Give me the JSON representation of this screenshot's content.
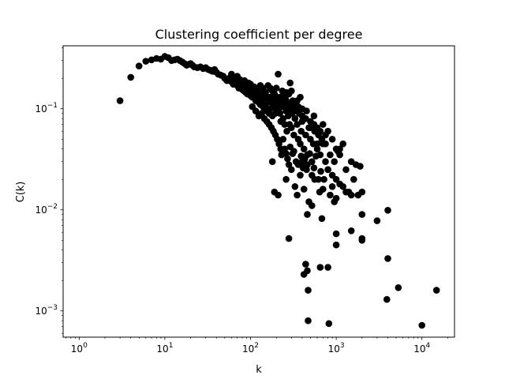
{
  "chart_data": {
    "type": "scatter",
    "title": "Clustering coefficient per degree",
    "xlabel": "k",
    "ylabel": "C(k)",
    "x_scale": "log",
    "y_scale": "log",
    "xlim": [
      0.65,
      24000
    ],
    "ylim": [
      0.00055,
      0.42
    ],
    "grid": false,
    "marker_color": "#000000",
    "x_ticks": [
      {
        "base": "10",
        "exp": "0",
        "value": 1
      },
      {
        "base": "10",
        "exp": "1",
        "value": 10
      },
      {
        "base": "10",
        "exp": "2",
        "value": 100
      },
      {
        "base": "10",
        "exp": "3",
        "value": 1000
      },
      {
        "base": "10",
        "exp": "4",
        "value": 10000
      }
    ],
    "y_ticks": [
      {
        "base": "10",
        "exp": "−3",
        "value": 0.001
      },
      {
        "base": "10",
        "exp": "−2",
        "value": 0.01
      },
      {
        "base": "10",
        "exp": "−1",
        "value": 0.1
      }
    ],
    "points": [
      [
        3,
        0.12
      ],
      [
        4,
        0.205
      ],
      [
        5,
        0.265
      ],
      [
        6,
        0.295
      ],
      [
        7,
        0.305
      ],
      [
        8,
        0.315
      ],
      [
        9,
        0.31
      ],
      [
        10,
        0.33
      ],
      [
        11,
        0.32
      ],
      [
        12,
        0.3
      ],
      [
        13,
        0.305
      ],
      [
        14,
        0.31
      ],
      [
        15,
        0.3
      ],
      [
        16,
        0.29
      ],
      [
        17,
        0.28
      ],
      [
        18,
        0.27
      ],
      [
        19,
        0.275
      ],
      [
        20,
        0.28
      ],
      [
        21,
        0.27
      ],
      [
        22,
        0.26
      ],
      [
        24,
        0.255
      ],
      [
        26,
        0.26
      ],
      [
        28,
        0.25
      ],
      [
        30,
        0.255
      ],
      [
        32,
        0.245
      ],
      [
        34,
        0.24
      ],
      [
        36,
        0.235
      ],
      [
        38,
        0.245
      ],
      [
        40,
        0.23
      ],
      [
        42,
        0.22
      ],
      [
        45,
        0.215
      ],
      [
        48,
        0.21
      ],
      [
        50,
        0.2
      ],
      [
        53,
        0.19
      ],
      [
        56,
        0.2
      ],
      [
        60,
        0.185
      ],
      [
        63,
        0.175
      ],
      [
        66,
        0.18
      ],
      [
        70,
        0.17
      ],
      [
        73,
        0.16
      ],
      [
        76,
        0.165
      ],
      [
        80,
        0.155
      ],
      [
        84,
        0.15
      ],
      [
        88,
        0.145
      ],
      [
        92,
        0.14
      ],
      [
        96,
        0.15
      ],
      [
        100,
        0.135
      ],
      [
        105,
        0.13
      ],
      [
        110,
        0.14
      ],
      [
        115,
        0.12
      ],
      [
        120,
        0.125
      ],
      [
        125,
        0.115
      ],
      [
        130,
        0.11
      ],
      [
        135,
        0.12
      ],
      [
        140,
        0.105
      ],
      [
        145,
        0.1
      ],
      [
        150,
        0.11
      ],
      [
        155,
        0.095
      ],
      [
        160,
        0.13
      ],
      [
        165,
        0.09
      ],
      [
        170,
        0.1
      ],
      [
        175,
        0.115
      ],
      [
        180,
        0.085
      ],
      [
        185,
        0.12
      ],
      [
        190,
        0.14
      ],
      [
        195,
        0.09
      ],
      [
        200,
        0.16
      ],
      [
        205,
        0.13
      ],
      [
        210,
        0.22
      ],
      [
        215,
        0.1
      ],
      [
        220,
        0.09
      ],
      [
        225,
        0.075
      ],
      [
        230,
        0.12
      ],
      [
        235,
        0.15
      ],
      [
        240,
        0.08
      ],
      [
        245,
        0.105
      ],
      [
        250,
        0.07
      ],
      [
        255,
        0.13
      ],
      [
        260,
        0.095
      ],
      [
        265,
        0.06
      ],
      [
        270,
        0.11
      ],
      [
        275,
        0.085
      ],
      [
        280,
        0.14
      ],
      [
        285,
        0.07
      ],
      [
        290,
        0.18
      ],
      [
        295,
        0.1
      ],
      [
        300,
        0.065
      ],
      [
        305,
        0.09
      ],
      [
        310,
        0.12
      ],
      [
        320,
        0.055
      ],
      [
        330,
        0.08
      ],
      [
        340,
        0.1
      ],
      [
        350,
        0.07
      ],
      [
        360,
        0.05
      ],
      [
        370,
        0.09
      ],
      [
        380,
        0.045
      ],
      [
        390,
        0.06
      ],
      [
        400,
        0.075
      ],
      [
        420,
        0.04
      ],
      [
        440,
        0.055
      ],
      [
        460,
        0.035
      ],
      [
        480,
        0.065
      ],
      [
        500,
        0.05
      ],
      [
        520,
        0.03
      ],
      [
        540,
        0.045
      ],
      [
        560,
        0.06
      ],
      [
        600,
        0.04
      ],
      [
        620,
        0.055
      ],
      [
        650,
        0.035
      ],
      [
        680,
        0.05
      ],
      [
        700,
        0.045
      ],
      [
        750,
        0.03
      ],
      [
        800,
        0.025
      ],
      [
        850,
        0.035
      ],
      [
        900,
        0.022
      ],
      [
        950,
        0.03
      ],
      [
        1000,
        0.02
      ],
      [
        1050,
        0.038
      ],
      [
        1100,
        0.035
      ],
      [
        1200,
        0.017
      ],
      [
        1300,
        0.025
      ],
      [
        1400,
        0.015
      ],
      [
        1500,
        0.03
      ],
      [
        1600,
        0.02
      ],
      [
        1700,
        0.028
      ],
      [
        1800,
        0.014
      ],
      [
        1900,
        0.027
      ],
      [
        2000,
        0.005
      ],
      [
        180,
        0.03
      ],
      [
        190,
        0.015
      ],
      [
        210,
        0.014
      ],
      [
        230,
        0.035
      ],
      [
        260,
        0.02
      ],
      [
        280,
        0.028
      ],
      [
        300,
        0.025
      ],
      [
        320,
        0.038
      ],
      [
        330,
        0.017
      ],
      [
        350,
        0.014
      ],
      [
        380,
        0.022
      ],
      [
        400,
        0.03
      ],
      [
        420,
        0.016
      ],
      [
        450,
        0.025
      ],
      [
        460,
        0.009
      ],
      [
        480,
        0.012
      ],
      [
        520,
        0.011
      ],
      [
        560,
        0.02
      ],
      [
        600,
        0.045
      ],
      [
        640,
        0.015
      ],
      [
        700,
        0.016
      ],
      [
        750,
        0.045
      ],
      [
        800,
        0.025
      ],
      [
        850,
        0.014
      ],
      [
        900,
        0.017
      ],
      [
        950,
        0.012
      ],
      [
        1000,
        0.013
      ],
      [
        1100,
        0.018
      ],
      [
        1300,
        0.015
      ],
      [
        1500,
        0.014
      ],
      [
        2000,
        0.015
      ],
      [
        280,
        0.0052
      ],
      [
        420,
        0.0023
      ],
      [
        440,
        0.0029
      ],
      [
        460,
        0.0025
      ],
      [
        470,
        0.0016
      ],
      [
        470,
        0.0008
      ],
      [
        650,
        0.0027
      ],
      [
        680,
        0.0082
      ],
      [
        800,
        0.0027
      ],
      [
        820,
        0.00075
      ],
      [
        1000,
        0.0045
      ],
      [
        1000,
        0.0058
      ],
      [
        1500,
        0.0062
      ],
      [
        2000,
        0.0052
      ],
      [
        2000,
        0.009
      ],
      [
        3000,
        0.0078
      ],
      [
        4000,
        0.0099
      ],
      [
        4000,
        0.0033
      ],
      [
        3900,
        0.0013
      ],
      [
        5300,
        0.0017
      ],
      [
        10000,
        0.00072
      ],
      [
        14800,
        0.0016
      ],
      [
        90,
        0.16
      ],
      [
        95,
        0.18
      ],
      [
        100,
        0.175
      ],
      [
        110,
        0.165
      ],
      [
        120,
        0.155
      ],
      [
        130,
        0.14
      ],
      [
        140,
        0.16
      ],
      [
        150,
        0.145
      ],
      [
        160,
        0.17
      ],
      [
        170,
        0.13
      ],
      [
        200,
        0.12
      ],
      [
        240,
        0.135
      ],
      [
        260,
        0.145
      ],
      [
        300,
        0.15
      ],
      [
        320,
        0.11
      ],
      [
        350,
        0.12
      ],
      [
        380,
        0.13
      ],
      [
        400,
        0.1
      ],
      [
        440,
        0.08
      ],
      [
        500,
        0.075
      ],
      [
        550,
        0.085
      ],
      [
        600,
        0.065
      ],
      [
        650,
        0.06
      ],
      [
        700,
        0.07
      ],
      [
        750,
        0.055
      ],
      [
        800,
        0.06
      ],
      [
        900,
        0.05
      ],
      [
        1000,
        0.04
      ],
      [
        1100,
        0.04
      ],
      [
        1200,
        0.045
      ],
      [
        105,
        0.105
      ],
      [
        115,
        0.095
      ],
      [
        125,
        0.085
      ],
      [
        135,
        0.09
      ],
      [
        145,
        0.08
      ],
      [
        155,
        0.075
      ],
      [
        165,
        0.07
      ],
      [
        175,
        0.065
      ],
      [
        185,
        0.06
      ],
      [
        195,
        0.055
      ],
      [
        205,
        0.05
      ],
      [
        215,
        0.045
      ],
      [
        225,
        0.04
      ],
      [
        240,
        0.05
      ],
      [
        250,
        0.04
      ],
      [
        260,
        0.036
      ],
      [
        270,
        0.032
      ],
      [
        290,
        0.042
      ],
      [
        310,
        0.036
      ],
      [
        340,
        0.03
      ],
      [
        360,
        0.028
      ],
      [
        390,
        0.034
      ],
      [
        410,
        0.026
      ],
      [
        430,
        0.032
      ],
      [
        460,
        0.028
      ],
      [
        490,
        0.036
      ],
      [
        520,
        0.022
      ],
      [
        550,
        0.026
      ],
      [
        580,
        0.034
      ],
      [
        620,
        0.02
      ],
      [
        660,
        0.024
      ],
      [
        720,
        0.02
      ],
      [
        60,
        0.22
      ],
      [
        65,
        0.2
      ],
      [
        70,
        0.21
      ],
      [
        75,
        0.195
      ],
      [
        80,
        0.18
      ],
      [
        85,
        0.19
      ],
      [
        90,
        0.175
      ],
      [
        95,
        0.16
      ],
      [
        100,
        0.155
      ],
      [
        110,
        0.15
      ],
      [
        120,
        0.145
      ],
      [
        130,
        0.17
      ],
      [
        140,
        0.135
      ],
      [
        150,
        0.13
      ],
      [
        160,
        0.125
      ],
      [
        170,
        0.16
      ],
      [
        180,
        0.15
      ],
      [
        190,
        0.11
      ],
      [
        200,
        0.1
      ],
      [
        210,
        0.115
      ],
      [
        220,
        0.13
      ],
      [
        240,
        0.11
      ],
      [
        260,
        0.12
      ],
      [
        280,
        0.1
      ],
      [
        300,
        0.11
      ],
      [
        330,
        0.095
      ],
      [
        360,
        0.105
      ],
      [
        400,
        0.085
      ],
      [
        450,
        0.095
      ],
      [
        500,
        0.065
      ],
      [
        550,
        0.07
      ]
    ]
  }
}
